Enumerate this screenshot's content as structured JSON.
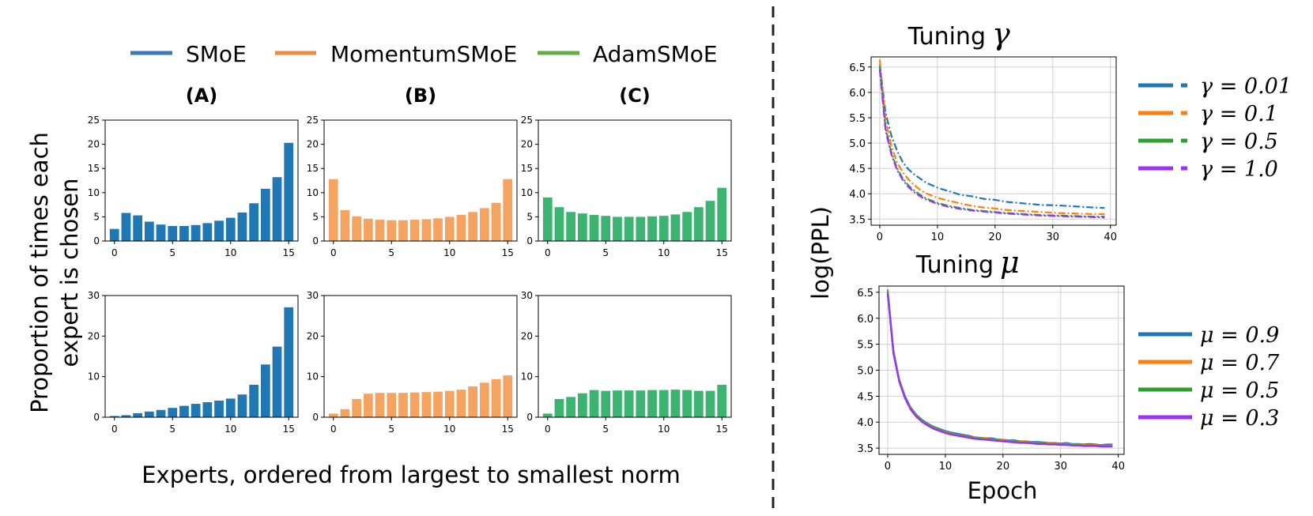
{
  "legend_left": [
    {
      "label": "SMoE",
      "color": "#3a78c0"
    },
    {
      "label": "MomentumSMoE",
      "color": "#f08a3c"
    },
    {
      "label": "AdamSMoE",
      "color": "#63ad47"
    }
  ],
  "left_ylabel_line1": "Proportion of times each",
  "left_ylabel_line2": "expert is chosen",
  "left_xlabel": "Experts, ordered from largest to smallest norm",
  "right_ylabel": "log(PPL)",
  "right_xlabel": "Epoch",
  "chart_data": [
    {
      "type": "bar",
      "panel": "A-top",
      "title": "(A)",
      "color": "#1f77b4",
      "categories": [
        0,
        1,
        2,
        3,
        4,
        5,
        6,
        7,
        8,
        9,
        10,
        11,
        12,
        13,
        14,
        15
      ],
      "values": [
        2.5,
        5.8,
        5.3,
        4.0,
        3.4,
        3.1,
        3.1,
        3.3,
        3.7,
        4.2,
        4.8,
        5.9,
        7.8,
        10.8,
        13.2,
        20.3
      ],
      "xticks": [
        "0",
        "5",
        "10",
        "15"
      ],
      "yticks": [
        "0",
        "5",
        "10",
        "15",
        "20",
        "25"
      ],
      "ylim": [
        0,
        25
      ]
    },
    {
      "type": "bar",
      "panel": "B-top",
      "title": "(B)",
      "color": "#f4a460",
      "categories": [
        0,
        1,
        2,
        3,
        4,
        5,
        6,
        7,
        8,
        9,
        10,
        11,
        12,
        13,
        14,
        15
      ],
      "values": [
        12.8,
        6.4,
        5.1,
        4.6,
        4.4,
        4.3,
        4.3,
        4.4,
        4.5,
        4.7,
        5.0,
        5.4,
        6.0,
        6.8,
        7.9,
        12.8
      ],
      "xticks": [
        "0",
        "5",
        "10",
        "15"
      ],
      "yticks": [
        "0",
        "5",
        "10",
        "15",
        "20",
        "25"
      ],
      "ylim": [
        0,
        25
      ]
    },
    {
      "type": "bar",
      "panel": "C-top",
      "title": "(C)",
      "color": "#3cb371",
      "categories": [
        0,
        1,
        2,
        3,
        4,
        5,
        6,
        7,
        8,
        9,
        10,
        11,
        12,
        13,
        14,
        15
      ],
      "values": [
        9.0,
        7.0,
        6.0,
        5.7,
        5.4,
        5.2,
        5.0,
        5.0,
        5.0,
        5.1,
        5.2,
        5.5,
        6.0,
        7.0,
        8.3,
        11.0
      ],
      "xticks": [
        "0",
        "5",
        "10",
        "15"
      ],
      "yticks": [
        "0",
        "5",
        "10",
        "15",
        "20",
        "25"
      ],
      "ylim": [
        0,
        25
      ]
    },
    {
      "type": "bar",
      "panel": "A-bottom",
      "color": "#1f77b4",
      "categories": [
        0,
        1,
        2,
        3,
        4,
        5,
        6,
        7,
        8,
        9,
        10,
        11,
        12,
        13,
        14,
        15
      ],
      "values": [
        0.3,
        0.5,
        1.0,
        1.4,
        1.8,
        2.3,
        2.8,
        3.3,
        3.7,
        4.1,
        4.6,
        5.6,
        8.0,
        13.0,
        17.4,
        27.1
      ],
      "xticks": [
        "0",
        "5",
        "10",
        "15"
      ],
      "yticks": [
        "0",
        "10",
        "20",
        "30"
      ],
      "ylim": [
        0,
        30
      ]
    },
    {
      "type": "bar",
      "panel": "B-bottom",
      "color": "#f4a460",
      "categories": [
        0,
        1,
        2,
        3,
        4,
        5,
        6,
        7,
        8,
        9,
        10,
        11,
        12,
        13,
        14,
        15
      ],
      "values": [
        0.9,
        2.0,
        4.5,
        5.8,
        6.0,
        6.0,
        6.0,
        6.1,
        6.2,
        6.3,
        6.5,
        6.8,
        7.6,
        8.5,
        9.4,
        10.3
      ],
      "xticks": [
        "0",
        "5",
        "10",
        "15"
      ],
      "yticks": [
        "0",
        "10",
        "20",
        "30"
      ],
      "ylim": [
        0,
        30
      ]
    },
    {
      "type": "bar",
      "panel": "C-bottom",
      "color": "#3cb371",
      "categories": [
        0,
        1,
        2,
        3,
        4,
        5,
        6,
        7,
        8,
        9,
        10,
        11,
        12,
        13,
        14,
        15
      ],
      "values": [
        0.9,
        4.5,
        5.0,
        5.9,
        6.7,
        6.5,
        6.6,
        6.6,
        6.6,
        6.7,
        6.7,
        6.8,
        6.7,
        6.5,
        6.5,
        8.0
      ],
      "xticks": [
        "0",
        "5",
        "10",
        "15"
      ],
      "yticks": [
        "0",
        "10",
        "20",
        "30"
      ],
      "ylim": [
        0,
        30
      ]
    },
    {
      "type": "line",
      "panel": "tuning-gamma",
      "title": "Tuning",
      "title_symbol": "γ",
      "xlim": [
        -1.5,
        41
      ],
      "ylim": [
        3.38,
        6.7
      ],
      "xticks": [
        "0",
        "10",
        "20",
        "30",
        "40"
      ],
      "yticks": [
        "3.5",
        "4.0",
        "4.5",
        "5.0",
        "5.5",
        "6.0",
        "6.5"
      ],
      "series": [
        {
          "name": "γ = 0.01",
          "color": "#1f77b4",
          "dash": "9,3,2,3",
          "x": [
            0,
            1,
            2,
            3,
            4,
            5,
            6,
            7,
            8,
            10,
            12,
            14,
            16,
            18,
            20,
            22,
            25,
            28,
            31,
            34,
            37,
            39
          ],
          "y": [
            6.55,
            5.6,
            5.15,
            4.85,
            4.62,
            4.48,
            4.38,
            4.3,
            4.22,
            4.12,
            4.05,
            3.98,
            3.95,
            3.9,
            3.88,
            3.84,
            3.81,
            3.78,
            3.77,
            3.75,
            3.73,
            3.72
          ]
        },
        {
          "name": "γ = 0.1",
          "color": "#ff7f0e",
          "dash": "9,3,2,3",
          "x": [
            0,
            1,
            2,
            3,
            4,
            5,
            6,
            7,
            8,
            10,
            12,
            14,
            16,
            18,
            20,
            22,
            25,
            28,
            31,
            34,
            37,
            39
          ],
          "y": [
            6.65,
            5.45,
            4.95,
            4.62,
            4.42,
            4.28,
            4.17,
            4.08,
            4.01,
            3.92,
            3.86,
            3.81,
            3.76,
            3.73,
            3.71,
            3.68,
            3.66,
            3.64,
            3.62,
            3.61,
            3.6,
            3.6
          ]
        },
        {
          "name": "γ = 0.5",
          "color": "#2ca02c",
          "dash": "9,3,2,3",
          "x": [
            0,
            1,
            2,
            3,
            4,
            5,
            6,
            7,
            8,
            10,
            12,
            14,
            16,
            18,
            20,
            22,
            25,
            28,
            31,
            34,
            37,
            39
          ],
          "y": [
            6.5,
            5.3,
            4.82,
            4.5,
            4.3,
            4.16,
            4.06,
            3.98,
            3.91,
            3.82,
            3.76,
            3.72,
            3.68,
            3.66,
            3.64,
            3.62,
            3.6,
            3.58,
            3.57,
            3.56,
            3.55,
            3.55
          ]
        },
        {
          "name": "γ = 1.0",
          "color": "#9b30ff",
          "dash": "9,3,2,3",
          "x": [
            0,
            1,
            2,
            3,
            4,
            5,
            6,
            7,
            8,
            10,
            12,
            14,
            16,
            18,
            20,
            22,
            25,
            28,
            31,
            34,
            37,
            39
          ],
          "y": [
            6.45,
            5.25,
            4.78,
            4.47,
            4.27,
            4.13,
            4.03,
            3.95,
            3.89,
            3.8,
            3.74,
            3.7,
            3.67,
            3.65,
            3.63,
            3.61,
            3.59,
            3.57,
            3.56,
            3.55,
            3.54,
            3.53
          ]
        }
      ]
    },
    {
      "type": "line",
      "panel": "tuning-mu",
      "title": "Tuning",
      "title_symbol": "μ",
      "xlim": [
        -1.5,
        41
      ],
      "ylim": [
        3.38,
        6.62
      ],
      "xticks": [
        "0",
        "10",
        "20",
        "30",
        "40"
      ],
      "yticks": [
        "3.5",
        "4.0",
        "4.5",
        "5.0",
        "5.5",
        "6.0",
        "6.5"
      ],
      "series": [
        {
          "name": "μ = 0.9",
          "color": "#1f77b4",
          "dash": "",
          "x": [
            0,
            1,
            2,
            3,
            4,
            5,
            6,
            7,
            8,
            9,
            10,
            11,
            12,
            13,
            14,
            15,
            16,
            17,
            18,
            19,
            20,
            21,
            22,
            23,
            24,
            25,
            26,
            27,
            28,
            29,
            30,
            31,
            32,
            33,
            34,
            35,
            36,
            37,
            38,
            39
          ],
          "y": [
            6.55,
            5.38,
            4.82,
            4.5,
            4.28,
            4.14,
            4.04,
            3.97,
            3.91,
            3.87,
            3.83,
            3.8,
            3.78,
            3.76,
            3.74,
            3.71,
            3.7,
            3.69,
            3.69,
            3.67,
            3.66,
            3.65,
            3.65,
            3.63,
            3.63,
            3.62,
            3.62,
            3.61,
            3.6,
            3.6,
            3.59,
            3.6,
            3.58,
            3.58,
            3.57,
            3.58,
            3.57,
            3.56,
            3.57,
            3.57
          ]
        },
        {
          "name": "μ = 0.7",
          "color": "#ff7f0e",
          "dash": "",
          "x": [
            0,
            1,
            2,
            3,
            4,
            5,
            6,
            7,
            8,
            9,
            10,
            11,
            12,
            13,
            14,
            15,
            16,
            17,
            18,
            19,
            20,
            21,
            22,
            23,
            24,
            25,
            26,
            27,
            28,
            29,
            30,
            31,
            32,
            33,
            34,
            35,
            36,
            37,
            38,
            39
          ],
          "y": [
            6.52,
            5.35,
            4.8,
            4.48,
            4.26,
            4.12,
            4.02,
            3.95,
            3.89,
            3.85,
            3.81,
            3.78,
            3.76,
            3.74,
            3.72,
            3.7,
            3.69,
            3.68,
            3.67,
            3.66,
            3.65,
            3.64,
            3.63,
            3.62,
            3.62,
            3.61,
            3.6,
            3.6,
            3.59,
            3.59,
            3.58,
            3.58,
            3.57,
            3.57,
            3.56,
            3.56,
            3.56,
            3.55,
            3.55,
            3.55
          ]
        },
        {
          "name": "μ = 0.5",
          "color": "#2ca02c",
          "dash": "",
          "x": [
            0,
            1,
            2,
            3,
            4,
            5,
            6,
            7,
            8,
            9,
            10,
            11,
            12,
            13,
            14,
            15,
            16,
            17,
            18,
            19,
            20,
            21,
            22,
            23,
            24,
            25,
            26,
            27,
            28,
            29,
            30,
            31,
            32,
            33,
            34,
            35,
            36,
            37,
            38,
            39
          ],
          "y": [
            6.5,
            5.33,
            4.79,
            4.47,
            4.25,
            4.11,
            4.01,
            3.94,
            3.88,
            3.84,
            3.8,
            3.77,
            3.75,
            3.73,
            3.71,
            3.69,
            3.68,
            3.67,
            3.66,
            3.65,
            3.64,
            3.63,
            3.62,
            3.61,
            3.61,
            3.6,
            3.59,
            3.59,
            3.58,
            3.58,
            3.57,
            3.57,
            3.56,
            3.56,
            3.55,
            3.55,
            3.55,
            3.54,
            3.54,
            3.54
          ]
        },
        {
          "name": "μ = 0.3",
          "color": "#9b30ff",
          "dash": "",
          "x": [
            0,
            1,
            2,
            3,
            4,
            5,
            6,
            7,
            8,
            9,
            10,
            11,
            12,
            13,
            14,
            15,
            16,
            17,
            18,
            19,
            20,
            21,
            22,
            23,
            24,
            25,
            26,
            27,
            28,
            29,
            30,
            31,
            32,
            33,
            34,
            35,
            36,
            37,
            38,
            39
          ],
          "y": [
            6.48,
            5.32,
            4.78,
            4.46,
            4.24,
            4.1,
            4.0,
            3.93,
            3.87,
            3.83,
            3.79,
            3.76,
            3.74,
            3.72,
            3.7,
            3.68,
            3.67,
            3.66,
            3.65,
            3.64,
            3.63,
            3.62,
            3.61,
            3.6,
            3.6,
            3.59,
            3.58,
            3.58,
            3.57,
            3.57,
            3.56,
            3.56,
            3.55,
            3.55,
            3.54,
            3.54,
            3.54,
            3.53,
            3.53,
            3.53
          ]
        }
      ]
    }
  ]
}
